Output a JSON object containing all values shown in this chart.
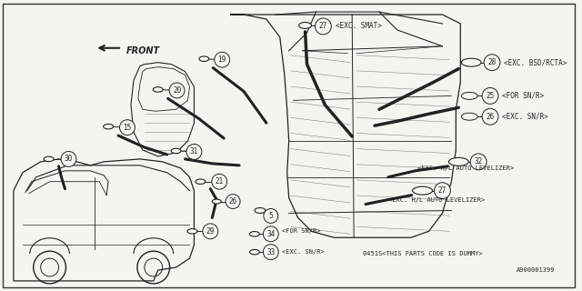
{
  "bg_color": "#f5f5f0",
  "border_color": "#333333",
  "line_color": "#222222",
  "text_color": "#222222",
  "fig_width": 6.4,
  "fig_height": 3.2,
  "dpi": 100,
  "bottom_text_1": "0451S<THIS PARTS CODE IS DUMMY>",
  "bottom_text_2": "A900001399",
  "front_label": "FRONT",
  "label_exc_smat": "<EXC. SMAT>",
  "label_exc_bsd": "<EXC. BSD/RCTA>",
  "label_for_snr_1": "<FOR SN/R>",
  "label_exc_snr_1": "<EXC. SN/R>",
  "label_exc_hl_1": "<EXC. H/L AUTO LEVELIZER>",
  "label_exc_hl_2": "<EXC. H/L AUTO LEVELIZER>",
  "label_for_snr_2": "<FOR SN/R>",
  "label_exc_snr_2": "<EXC. SN/R>"
}
